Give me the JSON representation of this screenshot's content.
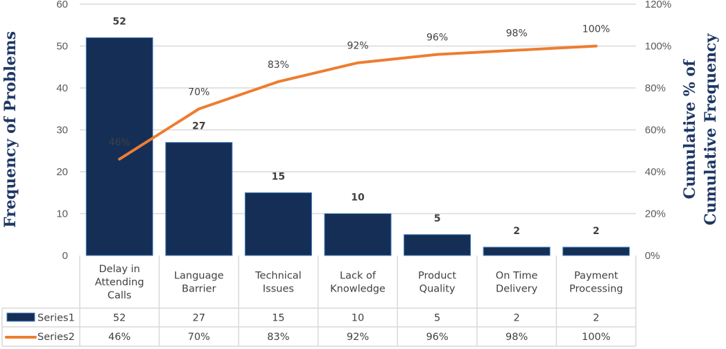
{
  "chart_data": {
    "type": "bar",
    "categories": [
      "Delay in Attending Calls",
      "Language Barrier",
      "Technical Issues",
      "Lack of Knowledge",
      "Product Quality",
      "On Time Delivery",
      "Payment Processing"
    ],
    "category_lines": [
      [
        "Delay in",
        "Attending",
        "Calls"
      ],
      [
        "Language",
        "Barrier"
      ],
      [
        "Technical",
        "Issues"
      ],
      [
        "Lack of",
        "Knowledge"
      ],
      [
        "Product",
        "Quality"
      ],
      [
        "On Time",
        "Delivery"
      ],
      [
        "Payment",
        "Processing"
      ]
    ],
    "series": [
      {
        "name": "Series1",
        "type": "bar",
        "axis": "left",
        "values": [
          52,
          27,
          15,
          10,
          5,
          2,
          2
        ],
        "labels": [
          "52",
          "27",
          "15",
          "10",
          "5",
          "2",
          "2"
        ],
        "color": "#152e56"
      },
      {
        "name": "Series2",
        "type": "line",
        "axis": "right",
        "values": [
          46,
          70,
          83,
          92,
          96,
          98,
          100
        ],
        "labels": [
          "46%",
          "70%",
          "83%",
          "92%",
          "96%",
          "98%",
          "100%"
        ],
        "color": "#ed7d31"
      }
    ],
    "ylabel": "Frequency of Problems",
    "y2label_lines": [
      "Cumulative % of",
      "Cumulative Frequency"
    ],
    "ylim": [
      0,
      60
    ],
    "y2lim": [
      0,
      120
    ],
    "yticks": [
      "0",
      "10",
      "20",
      "30",
      "40",
      "50",
      "60"
    ],
    "y2ticks": [
      "0%",
      "20%",
      "40%",
      "60%",
      "80%",
      "100%",
      "120%"
    ],
    "grid": true,
    "legend": "data-table"
  }
}
